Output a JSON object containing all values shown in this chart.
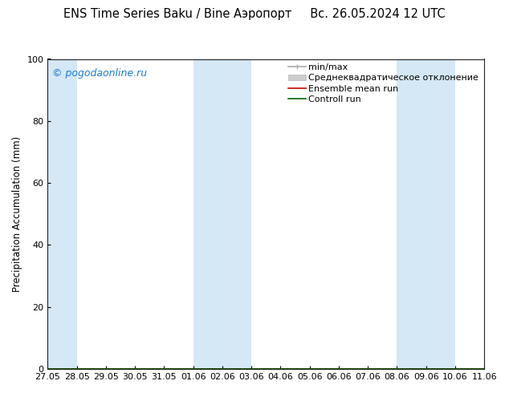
{
  "title": "ENS Time Series Baku / Bine Аэропорт     Вс. 26.05.2024 12 UTC",
  "ylabel": "Precipitation Accumulation (mm)",
  "ylim": [
    0,
    100
  ],
  "yticks": [
    0,
    20,
    40,
    60,
    80,
    100
  ],
  "copyright": "© pogodaonline.ru",
  "copyright_color": "#1a7ad4",
  "bg_color": "#ffffff",
  "plot_bg_color": "#ffffff",
  "band_color": "#d4e8f5",
  "x_start": "2024-05-27",
  "x_end": "2024-06-11",
  "xtick_labels": [
    "27.05",
    "28.05",
    "29.05",
    "30.05",
    "31.05",
    "01.06",
    "02.06",
    "03.06",
    "04.06",
    "05.06",
    "06.06",
    "07.06",
    "08.06",
    "09.06",
    "10.06",
    "11.06"
  ],
  "blue_bands": [
    {
      "start": 0,
      "end": 1
    },
    {
      "start": 5,
      "end": 7
    },
    {
      "start": 12,
      "end": 14
    }
  ],
  "legend_entries": [
    {
      "label": "min/max",
      "color": "#aaaaaa",
      "lw": 1.2
    },
    {
      "label": "Среднеквадратическое отклонение",
      "color": "#cccccc",
      "lw": 6
    },
    {
      "label": "Ensemble mean run",
      "color": "#cc0000",
      "lw": 1.2
    },
    {
      "label": "Controll run",
      "color": "#006600",
      "lw": 1.2
    }
  ],
  "title_fontsize": 10.5,
  "axis_label_fontsize": 8.5,
  "tick_fontsize": 8,
  "legend_fontsize": 8,
  "copyright_fontsize": 9
}
